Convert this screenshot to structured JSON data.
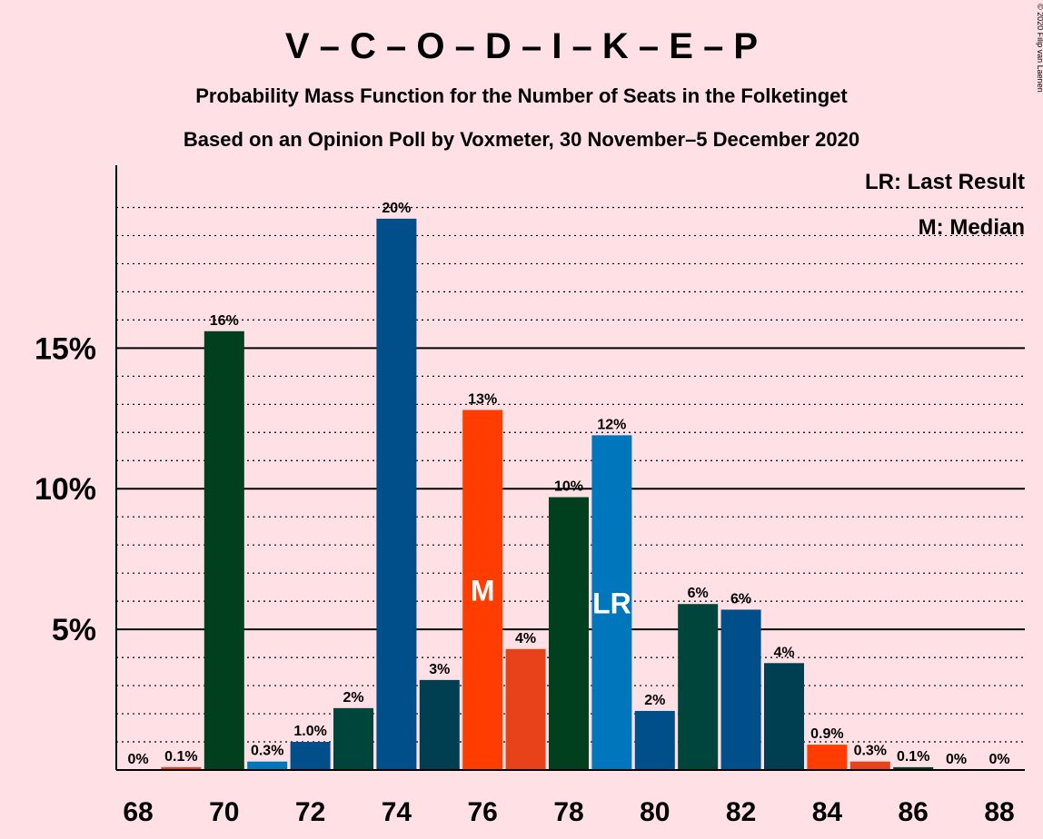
{
  "chart_data": {
    "type": "bar",
    "title": "V – C – O – D – I – K – E – P",
    "subtitle_1": "Probability Mass Function for the Number of Seats in the Folketinget",
    "subtitle_2": "Based on an Opinion Poll by Voxmeter, 30 November–5 December 2020",
    "copyright": "© 2020 Filip van Laenen",
    "legend": {
      "placement": "top-right",
      "entries": [
        "LR: Last Result",
        "M: Median"
      ]
    },
    "xlabel": "",
    "ylabel": "",
    "ylim": [
      0,
      21.5
    ],
    "y_ticks": [
      {
        "value": 5,
        "label": "5%"
      },
      {
        "value": 10,
        "label": "10%"
      },
      {
        "value": 15,
        "label": "15%"
      }
    ],
    "y_minor_grid_step": 1,
    "x_tick_labels": [
      "68",
      "70",
      "72",
      "74",
      "76",
      "78",
      "80",
      "82",
      "84",
      "86",
      "88"
    ],
    "bars": [
      {
        "seats": 68,
        "value": 0.0,
        "label": "0%",
        "color": "#E8421A"
      },
      {
        "seats": 69,
        "value": 0.1,
        "label": "0.1%",
        "color": "#E8421A"
      },
      {
        "seats": 70,
        "value": 15.6,
        "label": "16%",
        "color": "#00401F"
      },
      {
        "seats": 71,
        "value": 0.3,
        "label": "0.3%",
        "color": "#0076BD"
      },
      {
        "seats": 72,
        "value": 1.0,
        "label": "1.0%",
        "color": "#004E8A"
      },
      {
        "seats": 73,
        "value": 2.2,
        "label": "2%",
        "color": "#00453C"
      },
      {
        "seats": 74,
        "value": 19.6,
        "label": "20%",
        "color": "#004E8A"
      },
      {
        "seats": 75,
        "value": 3.2,
        "label": "3%",
        "color": "#003F52"
      },
      {
        "seats": 76,
        "value": 12.8,
        "label": "13%",
        "color": "#FF3D00",
        "marker": "M"
      },
      {
        "seats": 77,
        "value": 4.3,
        "label": "4%",
        "color": "#E8421A"
      },
      {
        "seats": 78,
        "value": 9.7,
        "label": "10%",
        "color": "#00401F"
      },
      {
        "seats": 79,
        "value": 11.9,
        "label": "12%",
        "color": "#0076BD",
        "marker": "LR"
      },
      {
        "seats": 80,
        "value": 2.1,
        "label": "2%",
        "color": "#004E8A"
      },
      {
        "seats": 81,
        "value": 5.9,
        "label": "6%",
        "color": "#00453C"
      },
      {
        "seats": 82,
        "value": 5.7,
        "label": "6%",
        "color": "#004E8A"
      },
      {
        "seats": 83,
        "value": 3.8,
        "label": "4%",
        "color": "#003F52"
      },
      {
        "seats": 84,
        "value": 0.9,
        "label": "0.9%",
        "color": "#FF3D00"
      },
      {
        "seats": 85,
        "value": 0.3,
        "label": "0.3%",
        "color": "#E8421A"
      },
      {
        "seats": 86,
        "value": 0.1,
        "label": "0.1%",
        "color": "#00401F"
      },
      {
        "seats": 87,
        "value": 0.0,
        "label": "0%",
        "color": "#0076BD"
      },
      {
        "seats": 88,
        "value": 0.0,
        "label": "0%",
        "color": "#004E8A"
      }
    ]
  }
}
